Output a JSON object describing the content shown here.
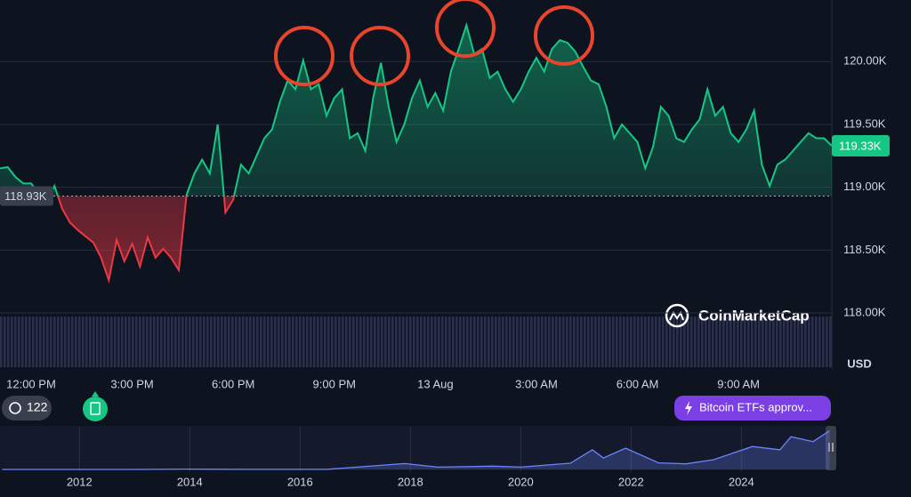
{
  "chart_data": [
    {
      "type": "line",
      "color": "#16c784",
      "down_color": "#ea3943",
      "values": [
        119.15,
        119.16,
        119.08,
        119.03,
        119.03,
        118.95,
        118.88,
        119.01,
        118.83,
        118.72,
        118.66,
        118.61,
        118.56,
        118.44,
        118.26,
        118.58,
        118.41,
        118.55,
        118.37,
        118.6,
        118.44,
        118.51,
        118.44,
        118.34,
        118.94,
        119.11,
        119.22,
        119.11,
        119.5,
        118.8,
        118.9,
        119.18,
        119.11,
        119.25,
        119.39,
        119.46,
        119.68,
        119.85,
        119.78,
        120.01,
        119.78,
        119.82,
        119.57,
        119.71,
        119.78,
        119.39,
        119.43,
        119.29,
        119.71,
        119.99,
        119.64,
        119.36,
        119.5,
        119.71,
        119.85,
        119.64,
        119.75,
        119.61,
        119.92,
        120.1,
        120.29,
        120.06,
        120.1,
        119.87,
        119.92,
        119.78,
        119.68,
        119.78,
        119.92,
        120.03,
        119.92,
        120.1,
        120.17,
        120.15,
        120.08,
        119.96,
        119.85,
        119.82,
        119.64,
        119.39,
        119.5,
        119.43,
        119.36,
        119.15,
        119.32,
        119.64,
        119.57,
        119.39,
        119.36,
        119.46,
        119.54,
        119.78,
        119.57,
        119.64,
        119.43,
        119.36,
        119.46,
        119.61,
        119.18,
        119.01,
        119.18,
        119.22,
        119.29,
        119.36,
        119.43,
        119.39,
        119.39,
        119.33
      ],
      "xlim": [
        0,
        107
      ],
      "xticks": [
        {
          "value": 4,
          "label": "12:00 PM"
        },
        {
          "value": 17,
          "label": "3:00 PM"
        },
        {
          "value": 30,
          "label": "6:00 PM"
        },
        {
          "value": 43,
          "label": "9:00 PM"
        },
        {
          "value": 56,
          "label": "13 Aug"
        },
        {
          "value": 69,
          "label": "3:00 AM"
        },
        {
          "value": 82,
          "label": "6:00 AM"
        },
        {
          "value": 95,
          "label": "9:00 AM"
        }
      ],
      "ylim": [
        118,
        120.49
      ],
      "yticks": [
        {
          "value": 118,
          "label": "118.00K"
        },
        {
          "value": 118.5,
          "label": "118.50K"
        },
        {
          "value": 119,
          "label": "119.00K"
        },
        {
          "value": 119.5,
          "label": "119.50K"
        },
        {
          "value": 120,
          "label": "120.00K"
        }
      ],
      "baseline": {
        "value": 118.93,
        "label": "118.93K"
      },
      "last_label": "119.33K",
      "y_unit": "USD",
      "grid": true
    },
    {
      "type": "line",
      "color": "#6a85ff",
      "x": [
        2010.6,
        2013,
        2013.9,
        2015,
        2016.5,
        2017.9,
        2018.5,
        2019.5,
        2020,
        2020.9,
        2021.3,
        2021.5,
        2021.9,
        2022.5,
        2023,
        2023.5,
        2024.2,
        2024.7,
        2024.9,
        2025.3,
        2025.6
      ],
      "values": [
        0,
        0.1,
        1,
        0.3,
        0.6,
        18,
        7,
        10,
        7,
        19,
        60,
        35,
        65,
        20,
        17,
        30,
        70,
        60,
        100,
        85,
        118
      ],
      "xlim": [
        2010.56,
        2025.64
      ],
      "ylim": [
        0,
        125
      ],
      "xticks": [
        2012,
        2014,
        2016,
        2018,
        2020,
        2022,
        2024
      ]
    }
  ],
  "ui": {
    "logo": "CoinMarketCap",
    "history_count": 122,
    "news_label": "Bitcoin ETFs approv..."
  }
}
